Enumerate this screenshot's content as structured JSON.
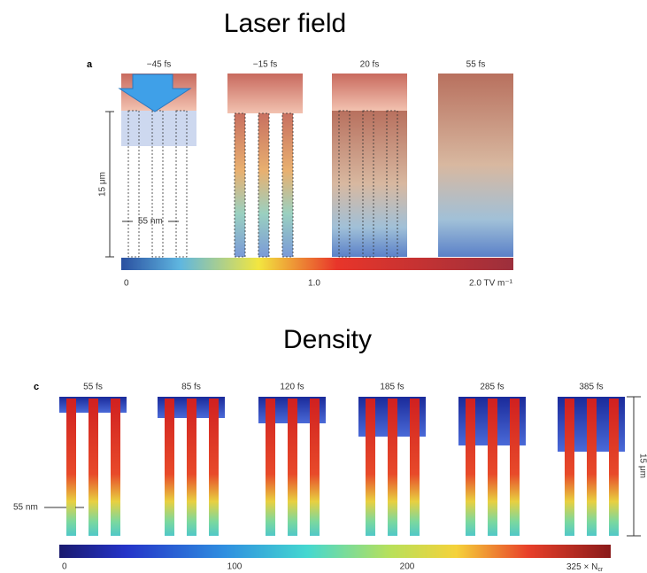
{
  "panel_a": {
    "title": "Laser field",
    "label": "a",
    "times": [
      "−45 fs",
      "−15 fs",
      "20 fs",
      "55 fs"
    ],
    "scale_label": "15 μm",
    "gap_label": "55 nm",
    "colorbar_ticks": [
      "0",
      "1.0",
      "2.0 TV m⁻¹"
    ]
  },
  "panel_c": {
    "title": "Density",
    "label": "c",
    "times": [
      "55 fs",
      "85 fs",
      "120 fs",
      "185 fs",
      "285 fs",
      "385 fs"
    ],
    "scale_label": "15 μm",
    "gap_label": "55 nm",
    "colorbar_ticks": [
      "0",
      "100",
      "200"
    ],
    "colorbar_max": {
      "text": "325 × N",
      "sub": "cr"
    }
  }
}
